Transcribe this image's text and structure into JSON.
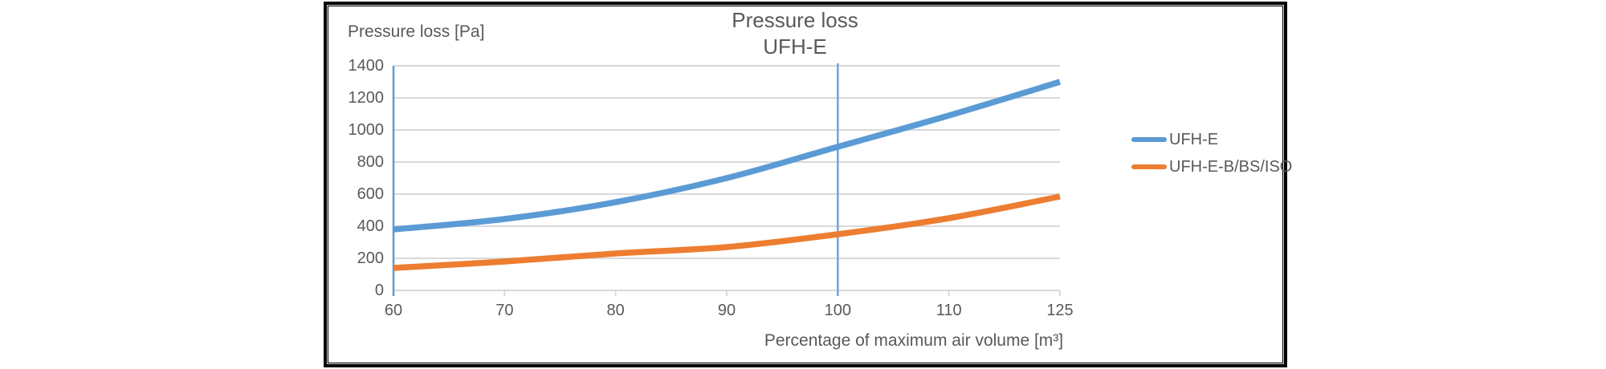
{
  "chart_data": {
    "type": "line",
    "title": "Pressure loss",
    "subtitle": "UFH-E",
    "y_axis_header": "Pressure loss [Pa]",
    "x_axis_label": "Percentage of maximum air volume [m³]",
    "categories": [
      60,
      70,
      80,
      90,
      100,
      110,
      125
    ],
    "y_ticks": [
      0,
      200,
      400,
      600,
      800,
      1000,
      1200,
      1400
    ],
    "ylim": [
      0,
      1400
    ],
    "series": [
      {
        "name": "UFH-E",
        "color": "#5b9bd5",
        "values": [
          380,
          445,
          550,
          700,
          895,
          1090,
          1300
        ]
      },
      {
        "name": "UFH-E-B/BS/ISO",
        "color": "#ed7d31",
        "values": [
          140,
          180,
          230,
          270,
          350,
          450,
          585
        ]
      }
    ],
    "reference_line_at_category": 100,
    "legend_position": "right",
    "grid": true,
    "smoothed_lines": true,
    "colors": {
      "gridline": "#d9d9d9",
      "x_axis_line": "#d9d9d9",
      "y_axis_line": "#5b9bd5",
      "reference_line": "#6ea4d9",
      "text": "#595959",
      "frame_border": "#000000"
    }
  }
}
